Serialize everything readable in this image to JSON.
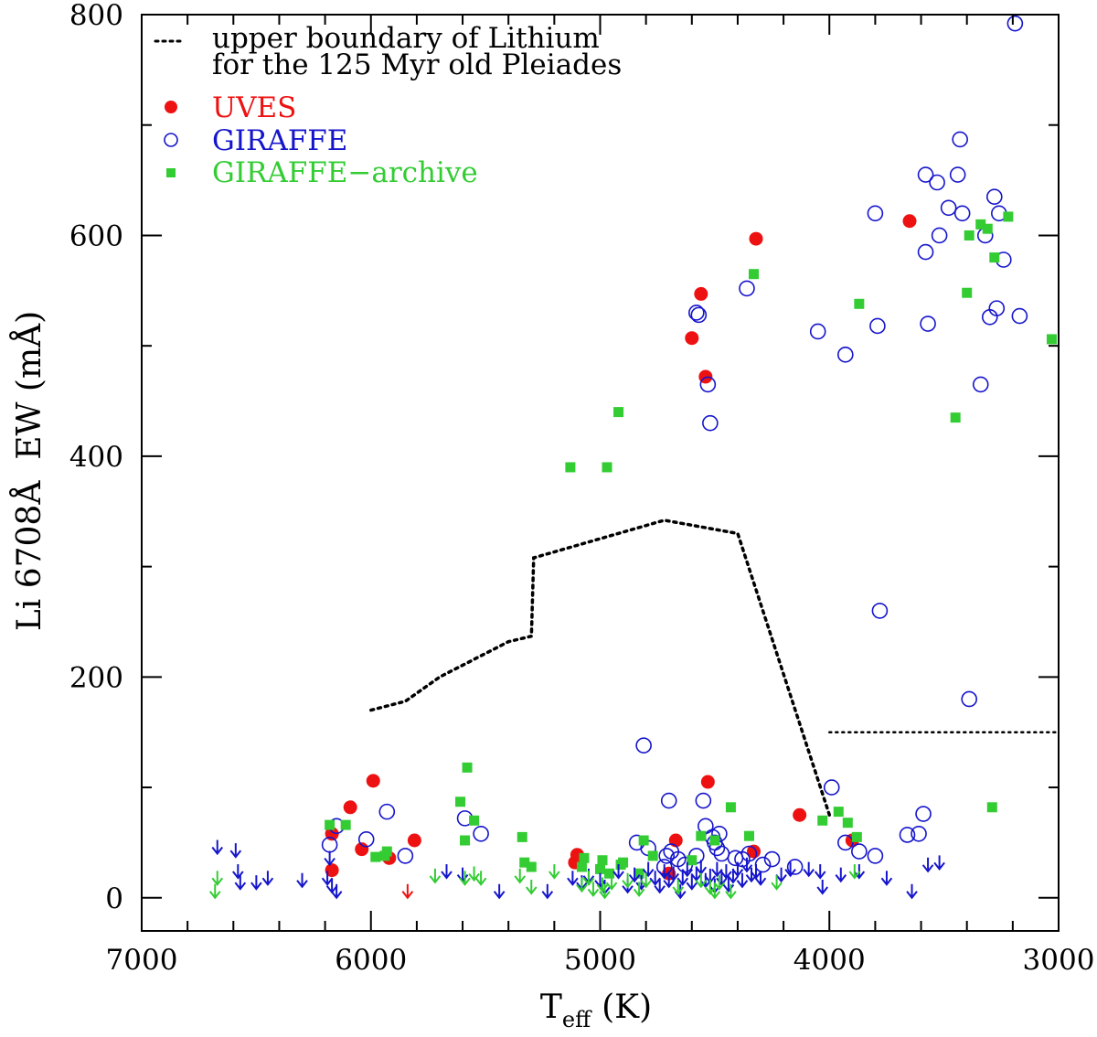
{
  "chart_data": {
    "type": "scatter",
    "title": "",
    "xlabel": "T",
    "xlabel_sub": "eff",
    "xlabel_unit": "(K)",
    "ylabel": "Li 6708Å  EW (mÅ)",
    "xlim": [
      7000,
      3000
    ],
    "ylim": [
      -30,
      800
    ],
    "x_ticks": [
      7000,
      6000,
      5000,
      4000,
      3000
    ],
    "y_ticks": [
      0,
      200,
      400,
      600,
      800
    ],
    "x_minor_step": 200,
    "y_minor_step": 100,
    "legend": {
      "placement": "top-left",
      "boundary_line": "upper boundary of Lithium",
      "boundary_line2": "for the 125 Myr old Pleiades",
      "uves": "UVES",
      "giraffe": "GIRAFFE",
      "archive": "GIRAFFE−archive"
    },
    "colors": {
      "uves": "#ee1111",
      "giraffe": "#1515cc",
      "archive": "#33cc33",
      "boundary": "#000000"
    },
    "boundary_segments": [
      [
        [
          6000,
          170
        ],
        [
          5850,
          178
        ],
        [
          5700,
          200
        ],
        [
          5400,
          232
        ],
        [
          5300,
          237
        ],
        [
          5290,
          308
        ],
        [
          4720,
          342
        ],
        [
          4400,
          330
        ],
        [
          4000,
          75
        ]
      ],
      [
        [
          4000,
          150
        ],
        [
          3000,
          150
        ]
      ]
    ],
    "series": [
      {
        "name": "UVES",
        "marker": "filled-circle",
        "points": [
          [
            6170,
            25
          ],
          [
            6170,
            58
          ],
          [
            6090,
            82
          ],
          [
            6040,
            44
          ],
          [
            5990,
            106
          ],
          [
            5920,
            36
          ],
          [
            5810,
            52
          ],
          [
            5110,
            32
          ],
          [
            5100,
            39
          ],
          [
            4700,
            22
          ],
          [
            4670,
            52
          ],
          [
            4530,
            105
          ],
          [
            4330,
            42
          ],
          [
            4130,
            75
          ],
          [
            3900,
            52
          ],
          [
            4600,
            507
          ],
          [
            4560,
            547
          ],
          [
            4540,
            472
          ],
          [
            4320,
            597
          ],
          [
            3650,
            613
          ]
        ]
      },
      {
        "name": "GIRAFFE",
        "marker": "open-circle",
        "points": [
          [
            6180,
            48
          ],
          [
            6150,
            65
          ],
          [
            6020,
            53
          ],
          [
            5930,
            78
          ],
          [
            5850,
            38
          ],
          [
            5590,
            72
          ],
          [
            5520,
            58
          ],
          [
            4840,
            50
          ],
          [
            4810,
            138
          ],
          [
            4790,
            45
          ],
          [
            4720,
            28
          ],
          [
            4710,
            38
          ],
          [
            4700,
            88
          ],
          [
            4690,
            42
          ],
          [
            4660,
            35
          ],
          [
            4630,
            30
          ],
          [
            4580,
            38
          ],
          [
            4550,
            88
          ],
          [
            4540,
            65
          ],
          [
            4510,
            55
          ],
          [
            4500,
            50
          ],
          [
            4490,
            45
          ],
          [
            4480,
            58
          ],
          [
            4470,
            40
          ],
          [
            4410,
            36
          ],
          [
            4380,
            35
          ],
          [
            4350,
            40
          ],
          [
            4290,
            30
          ],
          [
            4250,
            35
          ],
          [
            4150,
            28
          ],
          [
            3990,
            100
          ],
          [
            3930,
            50
          ],
          [
            3870,
            42
          ],
          [
            3800,
            38
          ],
          [
            3660,
            57
          ],
          [
            3610,
            58
          ],
          [
            3590,
            76
          ],
          [
            4580,
            530
          ],
          [
            4570,
            528
          ],
          [
            4530,
            465
          ],
          [
            4520,
            430
          ],
          [
            4360,
            552
          ],
          [
            4050,
            513
          ],
          [
            3930,
            492
          ],
          [
            3800,
            620
          ],
          [
            3790,
            518
          ],
          [
            3780,
            260
          ],
          [
            3580,
            655
          ],
          [
            3580,
            585
          ],
          [
            3570,
            520
          ],
          [
            3530,
            648
          ],
          [
            3520,
            600
          ],
          [
            3480,
            625
          ],
          [
            3440,
            655
          ],
          [
            3430,
            687
          ],
          [
            3420,
            620
          ],
          [
            3390,
            180
          ],
          [
            3340,
            465
          ],
          [
            3320,
            600
          ],
          [
            3300,
            526
          ],
          [
            3280,
            635
          ],
          [
            3270,
            534
          ],
          [
            3260,
            620
          ],
          [
            3240,
            578
          ],
          [
            3170,
            527
          ],
          [
            3190,
            792
          ]
        ]
      },
      {
        "name": "GIRAFFE-archive",
        "marker": "filled-square",
        "points": [
          [
            6180,
            66
          ],
          [
            6110,
            66
          ],
          [
            5980,
            37
          ],
          [
            5940,
            38
          ],
          [
            5930,
            42
          ],
          [
            5610,
            87
          ],
          [
            5590,
            52
          ],
          [
            5580,
            118
          ],
          [
            5550,
            70
          ],
          [
            5340,
            55
          ],
          [
            5330,
            32
          ],
          [
            5300,
            28
          ],
          [
            5130,
            390
          ],
          [
            5080,
            28
          ],
          [
            5070,
            36
          ],
          [
            5000,
            26
          ],
          [
            4990,
            34
          ],
          [
            4970,
            390
          ],
          [
            4960,
            22
          ],
          [
            4920,
            440
          ],
          [
            4910,
            30
          ],
          [
            4900,
            32
          ],
          [
            4830,
            22
          ],
          [
            4810,
            52
          ],
          [
            4770,
            38
          ],
          [
            4600,
            34
          ],
          [
            4560,
            56
          ],
          [
            4500,
            52
          ],
          [
            4430,
            82
          ],
          [
            4330,
            565
          ],
          [
            4350,
            56
          ],
          [
            4030,
            70
          ],
          [
            3960,
            78
          ],
          [
            3920,
            68
          ],
          [
            3870,
            538
          ],
          [
            3880,
            55
          ],
          [
            3450,
            435
          ],
          [
            3400,
            548
          ],
          [
            3390,
            600
          ],
          [
            3340,
            610
          ],
          [
            3310,
            606
          ],
          [
            3290,
            82
          ],
          [
            3280,
            580
          ],
          [
            3220,
            617
          ],
          [
            3030,
            506
          ]
        ]
      },
      {
        "name": "upper-limits-GIRAFFE",
        "marker": "down-arrow",
        "points": [
          [
            6670,
            40
          ],
          [
            6590,
            37
          ],
          [
            6580,
            18
          ],
          [
            6570,
            8
          ],
          [
            6500,
            8
          ],
          [
            6450,
            12
          ],
          [
            6300,
            10
          ],
          [
            6190,
            12
          ],
          [
            6180,
            30
          ],
          [
            6170,
            5
          ],
          [
            6150,
            0
          ],
          [
            5670,
            18
          ],
          [
            5600,
            15
          ],
          [
            5440,
            0
          ],
          [
            5230,
            0
          ],
          [
            5120,
            12
          ],
          [
            5080,
            8
          ],
          [
            5050,
            14
          ],
          [
            5000,
            10
          ],
          [
            4980,
            4
          ],
          [
            4920,
            18
          ],
          [
            4880,
            5
          ],
          [
            4850,
            15
          ],
          [
            4820,
            8
          ],
          [
            4790,
            20
          ],
          [
            4760,
            12
          ],
          [
            4740,
            5
          ],
          [
            4720,
            18
          ],
          [
            4700,
            10
          ],
          [
            4680,
            16
          ],
          [
            4650,
            0
          ],
          [
            4640,
            12
          ],
          [
            4620,
            20
          ],
          [
            4600,
            8
          ],
          [
            4580,
            16
          ],
          [
            4560,
            22
          ],
          [
            4540,
            10
          ],
          [
            4520,
            14
          ],
          [
            4500,
            5
          ],
          [
            4490,
            20
          ],
          [
            4470,
            12
          ],
          [
            4450,
            18
          ],
          [
            4440,
            6
          ],
          [
            4420,
            14
          ],
          [
            4400,
            20
          ],
          [
            4380,
            10
          ],
          [
            4360,
            24
          ],
          [
            4340,
            15
          ],
          [
            4320,
            18
          ],
          [
            4300,
            12
          ],
          [
            4210,
            15
          ],
          [
            4170,
            20
          ],
          [
            4090,
            20
          ],
          [
            4040,
            18
          ],
          [
            4030,
            4
          ],
          [
            3950,
            15
          ],
          [
            3870,
            18
          ],
          [
            3750,
            12
          ],
          [
            3640,
            0
          ],
          [
            3570,
            24
          ],
          [
            3520,
            26
          ]
        ]
      },
      {
        "name": "upper-limits-GIRAFFE-archive",
        "marker": "down-arrow",
        "points": [
          [
            6680,
            0
          ],
          [
            6670,
            12
          ],
          [
            5720,
            14
          ],
          [
            5590,
            12
          ],
          [
            5550,
            16
          ],
          [
            5520,
            12
          ],
          [
            5350,
            14
          ],
          [
            5300,
            4
          ],
          [
            5200,
            18
          ],
          [
            5080,
            6
          ],
          [
            5050,
            12
          ],
          [
            5030,
            2
          ],
          [
            4990,
            6
          ],
          [
            4980,
            0
          ],
          [
            4950,
            8
          ],
          [
            4880,
            10
          ],
          [
            4830,
            2
          ],
          [
            4800,
            10
          ],
          [
            4660,
            4
          ],
          [
            4560,
            10
          ],
          [
            4520,
            4
          ],
          [
            4500,
            0
          ],
          [
            4480,
            8
          ],
          [
            4430,
            0
          ],
          [
            4230,
            8
          ],
          [
            3890,
            18
          ]
        ]
      },
      {
        "name": "upper-limits-UVES",
        "marker": "down-arrow",
        "points": [
          [
            5840,
            0
          ]
        ]
      }
    ]
  }
}
